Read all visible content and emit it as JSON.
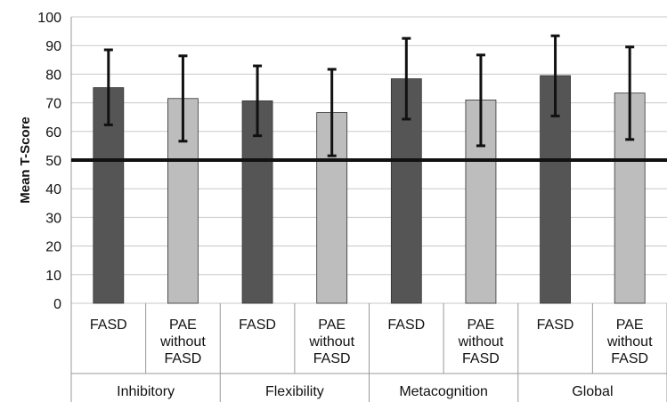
{
  "chart_data": {
    "type": "bar",
    "title": "",
    "ylabel": "Mean T-Score",
    "xlabel": "",
    "ylim": [
      0,
      100
    ],
    "yticks": [
      0,
      10,
      20,
      30,
      40,
      50,
      60,
      70,
      80,
      90,
      100
    ],
    "grid": true,
    "reference_line": 50,
    "groups": [
      "Inhibitory",
      "Flexibility",
      "Metacognition",
      "Global"
    ],
    "categories": [
      {
        "group": "Inhibitory",
        "label": [
          "FASD"
        ],
        "value": 75.3,
        "err_low": 62.3,
        "err_high": 88.5
      },
      {
        "group": "Inhibitory",
        "label": [
          "PAE",
          "without",
          "FASD"
        ],
        "value": 71.5,
        "err_low": 56.6,
        "err_high": 86.4
      },
      {
        "group": "Flexibility",
        "label": [
          "FASD"
        ],
        "value": 70.7,
        "err_low": 58.5,
        "err_high": 82.9
      },
      {
        "group": "Flexibility",
        "label": [
          "PAE",
          "without",
          "FASD"
        ],
        "value": 66.6,
        "err_low": 51.5,
        "err_high": 81.7
      },
      {
        "group": "Metacognition",
        "label": [
          "FASD"
        ],
        "value": 78.4,
        "err_low": 64.3,
        "err_high": 92.5
      },
      {
        "group": "Metacognition",
        "label": [
          "PAE",
          "without",
          "FASD"
        ],
        "value": 71.0,
        "err_low": 55.0,
        "err_high": 86.7
      },
      {
        "group": "Global",
        "label": [
          "FASD"
        ],
        "value": 79.5,
        "err_low": 65.4,
        "err_high": 93.4
      },
      {
        "group": "Global",
        "label": [
          "PAE",
          "without",
          "FASD"
        ],
        "value": 73.4,
        "err_low": 57.2,
        "err_high": 89.5
      }
    ],
    "colors": {
      "FASD": "#555555",
      "PAE without FASD": "#bdbdbd",
      "grid": "#c8c8c8",
      "reference": "#111111"
    }
  }
}
